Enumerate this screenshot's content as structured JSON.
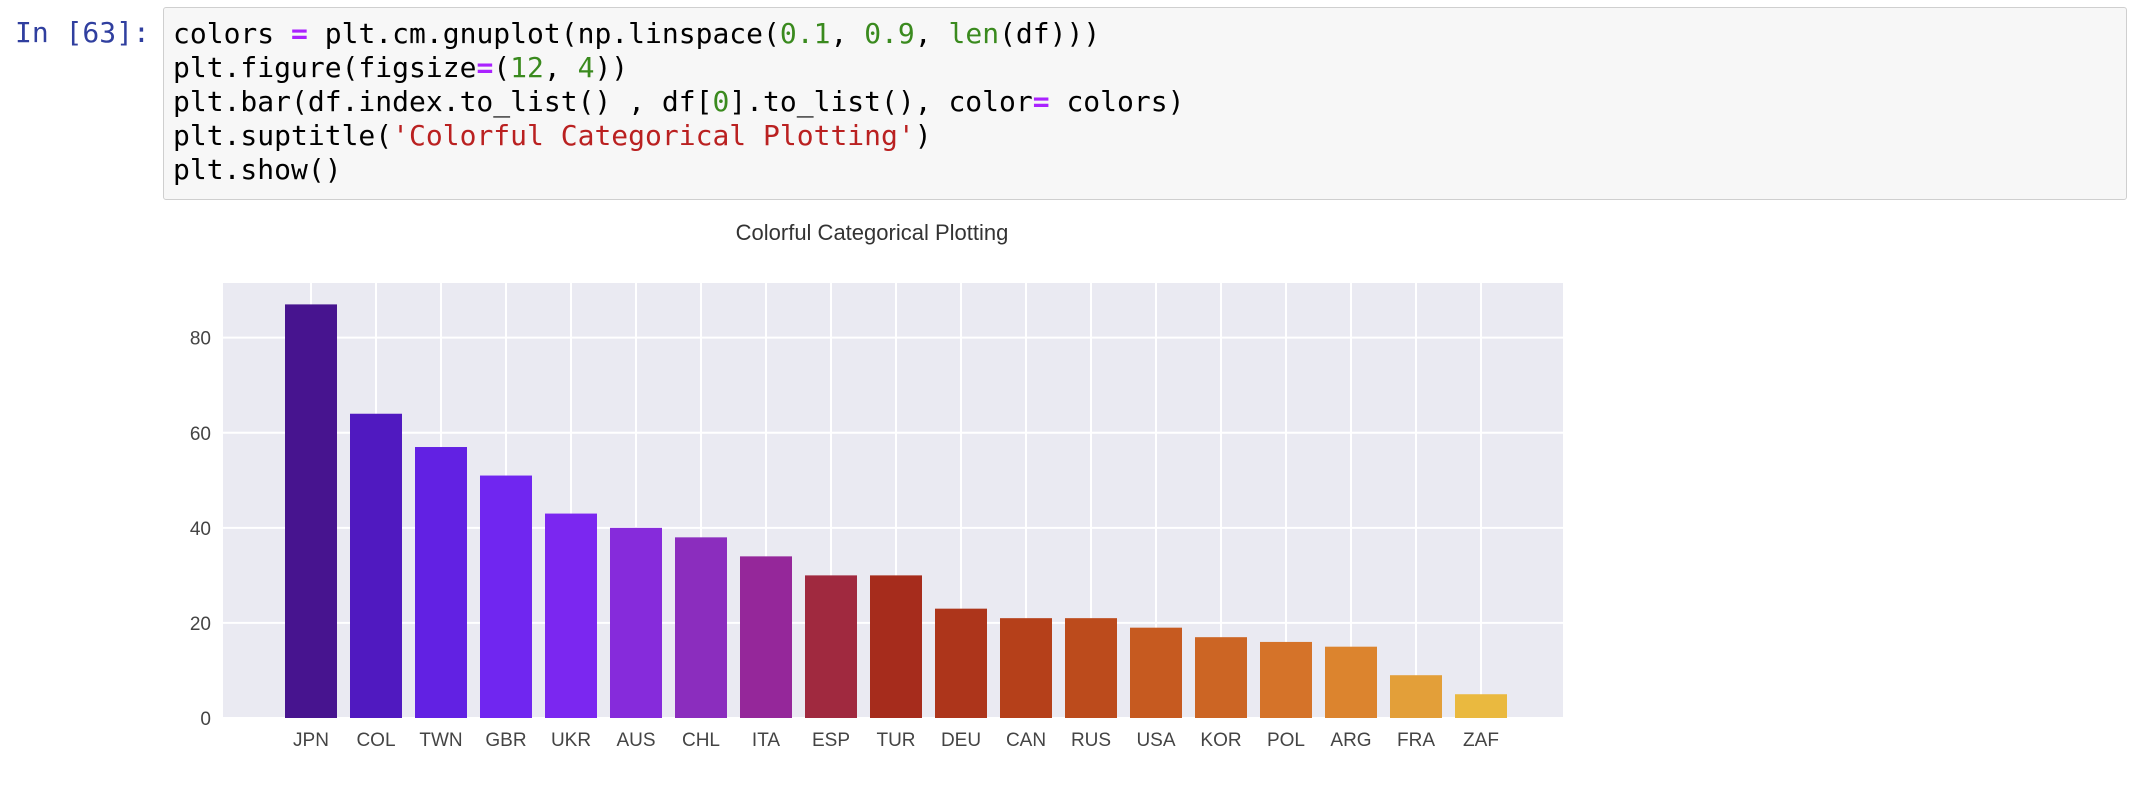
{
  "cell": {
    "prompt": "In [63]:",
    "code_lines": [
      [
        {
          "t": "colors "
        },
        {
          "t": "=",
          "c": "op"
        },
        {
          "t": " plt.cm.gnuplot(np.linspace("
        },
        {
          "t": "0.1",
          "c": "num"
        },
        {
          "t": ", "
        },
        {
          "t": "0.9",
          "c": "num"
        },
        {
          "t": ", "
        },
        {
          "t": "len",
          "c": "bi"
        },
        {
          "t": "(df)))"
        }
      ],
      [
        {
          "t": "plt.figure(figsize"
        },
        {
          "t": "=",
          "c": "op"
        },
        {
          "t": "("
        },
        {
          "t": "12",
          "c": "num"
        },
        {
          "t": ", "
        },
        {
          "t": "4",
          "c": "num"
        },
        {
          "t": "))"
        }
      ],
      [
        {
          "t": "plt.bar(df.index.to_list() , df["
        },
        {
          "t": "0",
          "c": "num"
        },
        {
          "t": "].to_list(), color"
        },
        {
          "t": "=",
          "c": "op"
        },
        {
          "t": " colors)"
        }
      ],
      [
        {
          "t": "plt.suptitle("
        },
        {
          "t": "'Colorful Categorical Plotting'",
          "c": "str"
        },
        {
          "t": ")"
        }
      ],
      [
        {
          "t": "plt.show()"
        }
      ]
    ]
  },
  "chart_data": {
    "type": "bar",
    "title": "Colorful Categorical Plotting",
    "xlabel": "",
    "ylabel": "",
    "categories": [
      "JPN",
      "COL",
      "TWN",
      "GBR",
      "UKR",
      "AUS",
      "CHL",
      "ITA",
      "ESP",
      "TUR",
      "DEU",
      "CAN",
      "RUS",
      "USA",
      "KOR",
      "POL",
      "ARG",
      "FRA",
      "ZAF"
    ],
    "values": [
      87,
      64,
      57,
      51,
      43,
      40,
      38,
      34,
      30,
      30,
      23,
      21,
      21,
      19,
      17,
      16,
      15,
      9,
      5
    ],
    "colors": [
      "#47148f",
      "#5019c0",
      "#6221e3",
      "#7026f0",
      "#7b27f0",
      "#862bdb",
      "#8b2dbe",
      "#95279a",
      "#a0293f",
      "#a62c1c",
      "#ad351b",
      "#b5401a",
      "#bc4b1c",
      "#c65a20",
      "#cc6524",
      "#d57329",
      "#dc842e",
      "#e39f39",
      "#eab93f"
    ],
    "yticks": [
      0,
      20,
      40,
      60,
      80
    ],
    "ylim": [
      0,
      91.5
    ],
    "grid": true,
    "legend": "none"
  }
}
